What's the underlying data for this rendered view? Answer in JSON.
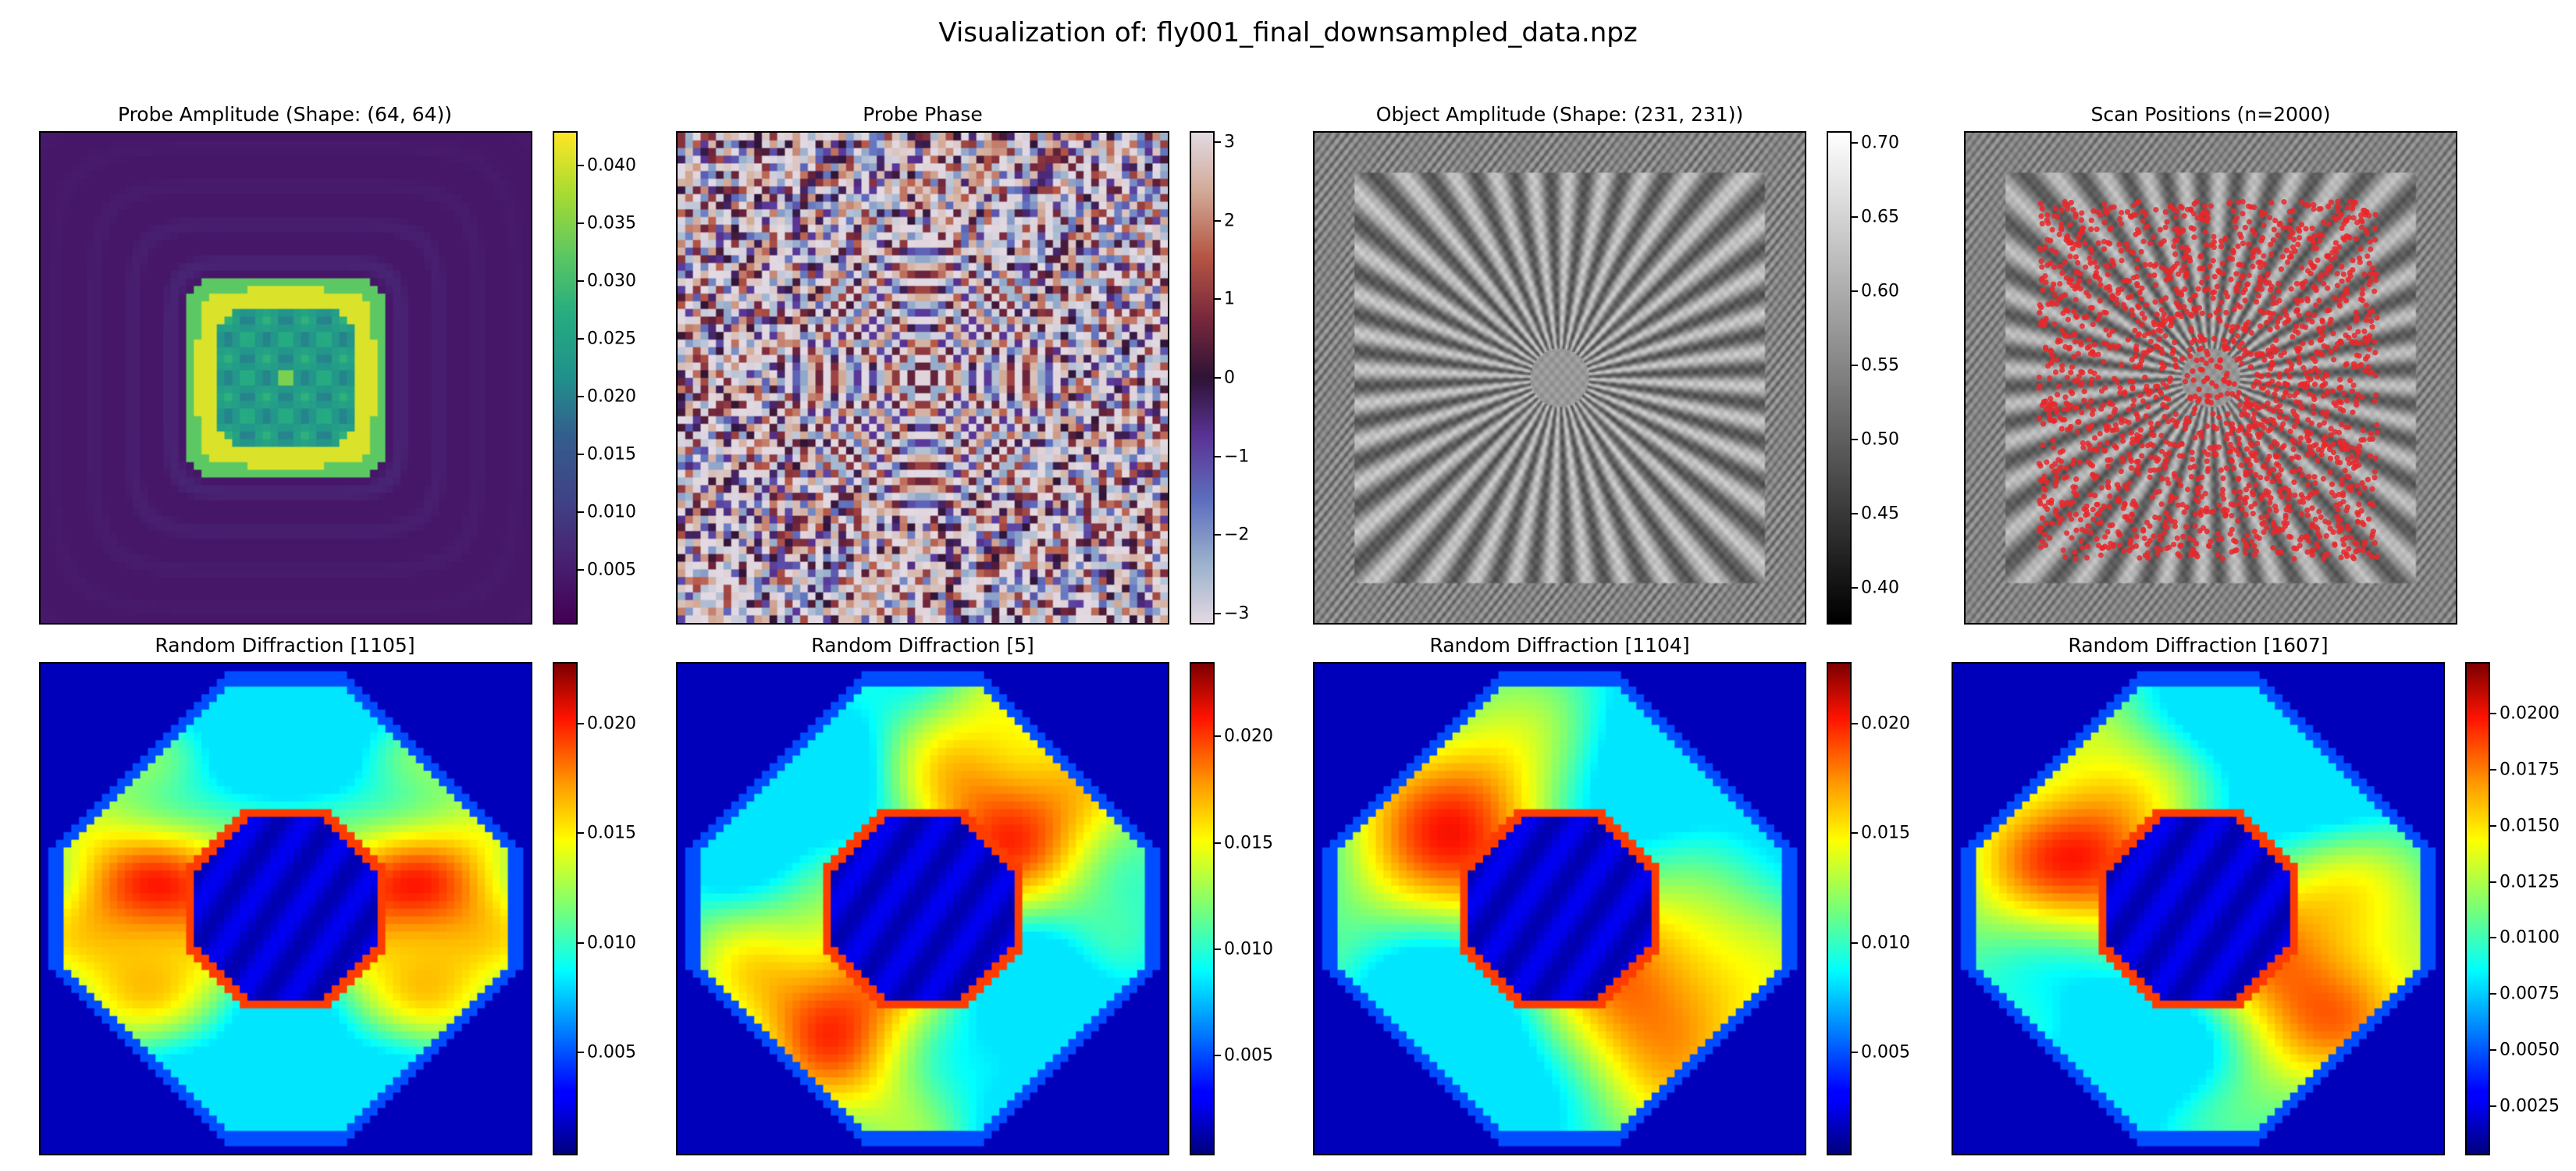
{
  "figure": {
    "suptitle": "Visualization of: fly001_final_downsampled_data.npz"
  },
  "chart_data": [
    {
      "type": "heatmap",
      "title": "Probe Amplitude (Shape: (64, 64))",
      "colormap": "viridis",
      "grid_shape": [
        64,
        64
      ],
      "colorbar": {
        "min": 0.0003,
        "max": 0.043,
        "ticks": [
          "0.040",
          "0.035",
          "0.030",
          "0.025",
          "0.020",
          "0.015",
          "0.010",
          "0.005"
        ],
        "tick_values": [
          0.04,
          0.035,
          0.03,
          0.025,
          0.02,
          0.015,
          0.01,
          0.005
        ]
      }
    },
    {
      "type": "heatmap",
      "title": "Probe Phase",
      "colormap": "twilight",
      "grid_shape": [
        64,
        64
      ],
      "colorbar": {
        "min": -3.1416,
        "max": 3.1416,
        "ticks": [
          "3",
          "2",
          "1",
          "0",
          "−1",
          "−2",
          "−3"
        ],
        "tick_values": [
          3,
          2,
          1,
          0,
          -1,
          -2,
          -3
        ]
      }
    },
    {
      "type": "heatmap",
      "title": "Object Amplitude (Shape: (231, 231))",
      "colormap": "gray",
      "grid_shape": [
        231,
        231
      ],
      "colorbar": {
        "min": 0.375,
        "max": 0.708,
        "ticks": [
          "0.70",
          "0.65",
          "0.60",
          "0.55",
          "0.50",
          "0.45",
          "0.40"
        ],
        "tick_values": [
          0.7,
          0.65,
          0.6,
          0.55,
          0.5,
          0.45,
          0.4
        ]
      }
    },
    {
      "type": "scatter",
      "title": "Scan Positions (n=2000)",
      "background": "object amplitude (gray)",
      "n_points": 2000,
      "point_color": "#e8282b",
      "x_range_fraction": [
        0.15,
        0.84
      ],
      "y_range_fraction": [
        0.14,
        0.87
      ]
    },
    {
      "type": "heatmap",
      "title": "Random Diffraction [1105]",
      "colormap": "jet",
      "grid_shape": [
        64,
        64
      ],
      "colorbar": {
        "min": 0.0003,
        "max": 0.0228,
        "ticks": [
          "0.020",
          "0.015",
          "0.010",
          "0.005"
        ],
        "tick_values": [
          0.02,
          0.015,
          0.01,
          0.005
        ]
      }
    },
    {
      "type": "heatmap",
      "title": "Random Diffraction [5]",
      "colormap": "jet",
      "grid_shape": [
        64,
        64
      ],
      "colorbar": {
        "min": 0.0003,
        "max": 0.0235,
        "ticks": [
          "0.020",
          "0.015",
          "0.010",
          "0.005"
        ],
        "tick_values": [
          0.02,
          0.015,
          0.01,
          0.005
        ]
      }
    },
    {
      "type": "heatmap",
      "title": "Random Diffraction [1104]",
      "colormap": "jet",
      "grid_shape": [
        64,
        64
      ],
      "colorbar": {
        "min": 0.0003,
        "max": 0.0228,
        "ticks": [
          "0.020",
          "0.015",
          "0.010",
          "0.005"
        ],
        "tick_values": [
          0.02,
          0.015,
          0.01,
          0.005
        ]
      }
    },
    {
      "type": "heatmap",
      "title": "Random Diffraction [1607]",
      "colormap": "jet",
      "grid_shape": [
        64,
        64
      ],
      "colorbar": {
        "min": 0.0003,
        "max": 0.0223,
        "ticks": [
          "0.0200",
          "0.0175",
          "0.0150",
          "0.0125",
          "0.0100",
          "0.0075",
          "0.0050",
          "0.0025"
        ],
        "tick_values": [
          0.02,
          0.0175,
          0.015,
          0.0125,
          0.01,
          0.0075,
          0.005,
          0.0025
        ]
      }
    }
  ]
}
